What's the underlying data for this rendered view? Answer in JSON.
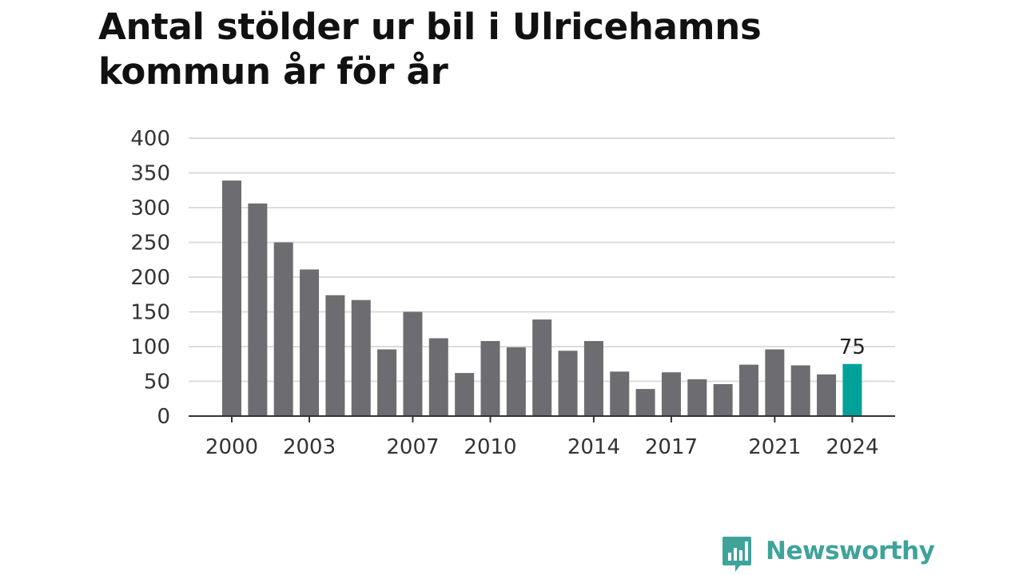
{
  "title_line1": "Antal stölder ur bil i Ulricehamns",
  "title_line2": "kommun år för år",
  "brand": {
    "name": "Newsworthy",
    "logo_icon": "newsworthy-logo-icon",
    "color": "#3fa39a"
  },
  "colors": {
    "bar": "#6d6c71",
    "highlight": "#00a19a",
    "grid": "#dcdcdc",
    "axis": "#333333",
    "text": "#333333"
  },
  "chart_data": {
    "type": "bar",
    "title": "Antal stölder ur bil i Ulricehamns kommun år för år",
    "xlabel": "",
    "ylabel": "",
    "categories": [
      "2000",
      "2001",
      "2002",
      "2003",
      "2004",
      "2005",
      "2006",
      "2007",
      "2008",
      "2009",
      "2010",
      "2011",
      "2012",
      "2013",
      "2014",
      "2015",
      "2016",
      "2017",
      "2018",
      "2019",
      "2020",
      "2021",
      "2022",
      "2023",
      "2024"
    ],
    "values": [
      339,
      306,
      250,
      211,
      174,
      167,
      96,
      150,
      112,
      62,
      108,
      99,
      139,
      94,
      108,
      64,
      39,
      63,
      53,
      46,
      74,
      96,
      73,
      60,
      75
    ],
    "x_tick_labels": [
      "2000",
      "2003",
      "2007",
      "2010",
      "2014",
      "2017",
      "2021",
      "2024"
    ],
    "y_ticks": [
      0,
      50,
      100,
      150,
      200,
      250,
      300,
      350,
      400
    ],
    "ylim": [
      0,
      400
    ],
    "grid": true,
    "highlight_category": "2024",
    "highlight_label": "75"
  }
}
